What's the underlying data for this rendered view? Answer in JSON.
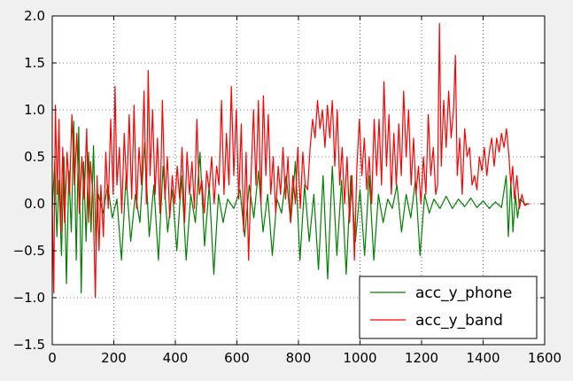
{
  "chart_data": {
    "type": "line",
    "title": "",
    "xlabel": "",
    "ylabel": "",
    "xlim": [
      0,
      1600
    ],
    "ylim": [
      -1.5,
      2.0
    ],
    "x_ticks": [
      0,
      200,
      400,
      600,
      800,
      1000,
      1200,
      1400,
      1600
    ],
    "y_ticks": [
      -1.5,
      -1.0,
      -0.5,
      0.0,
      0.5,
      1.0,
      1.5,
      2.0
    ],
    "x_tick_labels": [
      "0",
      "200",
      "400",
      "600",
      "800",
      "1000",
      "1200",
      "1400",
      "1600"
    ],
    "y_tick_labels": [
      "−1.5",
      "−1.0",
      "−0.5",
      "0.0",
      "0.5",
      "1.0",
      "1.5",
      "2.0"
    ],
    "grid": true,
    "legend_position": "bottom-right",
    "series": [
      {
        "name": "acc_y_phone",
        "color": "#008000",
        "points": [
          [
            0,
            -0.05
          ],
          [
            8,
            0.45
          ],
          [
            15,
            -0.35
          ],
          [
            22,
            0.25
          ],
          [
            30,
            -0.55
          ],
          [
            38,
            0.5
          ],
          [
            46,
            -0.85
          ],
          [
            54,
            0.35
          ],
          [
            62,
            -0.3
          ],
          [
            70,
            0.88
          ],
          [
            78,
            -0.6
          ],
          [
            86,
            0.82
          ],
          [
            94,
            -0.95
          ],
          [
            102,
            0.45
          ],
          [
            110,
            -0.4
          ],
          [
            118,
            0.55
          ],
          [
            126,
            -0.3
          ],
          [
            134,
            0.62
          ],
          [
            142,
            -0.45
          ],
          [
            150,
            0.1
          ],
          [
            165,
            -0.1
          ],
          [
            180,
            0.2
          ],
          [
            195,
            -0.15
          ],
          [
            210,
            0.05
          ],
          [
            225,
            -0.6
          ],
          [
            240,
            0.3
          ],
          [
            255,
            -0.4
          ],
          [
            270,
            0.1
          ],
          [
            285,
            -0.2
          ],
          [
            300,
            0.65
          ],
          [
            315,
            -0.35
          ],
          [
            330,
            0.2
          ],
          [
            345,
            -0.6
          ],
          [
            360,
            0.4
          ],
          [
            375,
            -0.3
          ],
          [
            390,
            0.15
          ],
          [
            405,
            -0.5
          ],
          [
            420,
            0.3
          ],
          [
            435,
            -0.6
          ],
          [
            450,
            0.1
          ],
          [
            465,
            -0.2
          ],
          [
            480,
            0.55
          ],
          [
            495,
            -0.45
          ],
          [
            510,
            0.2
          ],
          [
            525,
            -0.75
          ],
          [
            540,
            0.1
          ],
          [
            555,
            -0.2
          ],
          [
            570,
            0.05
          ],
          [
            590,
            -0.05
          ],
          [
            610,
            0.15
          ],
          [
            625,
            -0.35
          ],
          [
            640,
            0.2
          ],
          [
            655,
            -0.15
          ],
          [
            670,
            0.35
          ],
          [
            685,
            -0.3
          ],
          [
            700,
            0.1
          ],
          [
            715,
            -0.55
          ],
          [
            730,
            0.05
          ],
          [
            745,
            -0.1
          ],
          [
            760,
            0.3
          ],
          [
            775,
            -0.2
          ],
          [
            790,
            0.45
          ],
          [
            805,
            -0.6
          ],
          [
            820,
            0.2
          ],
          [
            835,
            -0.4
          ],
          [
            850,
            0.1
          ],
          [
            865,
            -0.7
          ],
          [
            880,
            0.3
          ],
          [
            895,
            -0.8
          ],
          [
            910,
            0.4
          ],
          [
            925,
            -0.55
          ],
          [
            940,
            0.25
          ],
          [
            955,
            -0.75
          ],
          [
            970,
            0.3
          ],
          [
            985,
            -0.4
          ],
          [
            1000,
            0.15
          ],
          [
            1015,
            -0.55
          ],
          [
            1030,
            0.3
          ],
          [
            1045,
            -0.6
          ],
          [
            1060,
            0.1
          ],
          [
            1075,
            -0.2
          ],
          [
            1090,
            0.05
          ],
          [
            1105,
            -0.05
          ],
          [
            1120,
            0.2
          ],
          [
            1135,
            -0.3
          ],
          [
            1150,
            0.1
          ],
          [
            1165,
            -0.15
          ],
          [
            1180,
            0.25
          ],
          [
            1195,
            -0.55
          ],
          [
            1210,
            0.1
          ],
          [
            1225,
            -0.1
          ],
          [
            1240,
            0.05
          ],
          [
            1260,
            -0.05
          ],
          [
            1280,
            0.08
          ],
          [
            1300,
            -0.05
          ],
          [
            1320,
            0.05
          ],
          [
            1340,
            -0.03
          ],
          [
            1360,
            0.06
          ],
          [
            1380,
            -0.04
          ],
          [
            1400,
            0.03
          ],
          [
            1420,
            -0.05
          ],
          [
            1440,
            0.02
          ],
          [
            1460,
            -0.04
          ],
          [
            1475,
            0.3
          ],
          [
            1482,
            -0.35
          ],
          [
            1490,
            0.25
          ],
          [
            1497,
            -0.3
          ],
          [
            1505,
            0.1
          ],
          [
            1512,
            -0.15
          ],
          [
            1520,
            0.05
          ],
          [
            1535,
            0.0
          ],
          [
            1550,
            0.0
          ]
        ]
      },
      {
        "name": "acc_y_band",
        "color": "#ff0000",
        "points": [
          [
            0,
            0.0
          ],
          [
            5,
            -0.95
          ],
          [
            10,
            1.05
          ],
          [
            16,
            0.1
          ],
          [
            22,
            0.9
          ],
          [
            28,
            -0.3
          ],
          [
            34,
            0.6
          ],
          [
            40,
            -0.2
          ],
          [
            48,
            0.55
          ],
          [
            56,
            0.1
          ],
          [
            64,
            0.95
          ],
          [
            72,
            0.2
          ],
          [
            80,
            0.75
          ],
          [
            88,
            -0.1
          ],
          [
            96,
            0.5
          ],
          [
            104,
            0.05
          ],
          [
            112,
            0.8
          ],
          [
            118,
            -0.2
          ],
          [
            124,
            0.45
          ],
          [
            132,
            0.1
          ],
          [
            140,
            -1.0
          ],
          [
            146,
            0.3
          ],
          [
            152,
            -0.5
          ],
          [
            158,
            0.2
          ],
          [
            166,
            -0.35
          ],
          [
            174,
            0.55
          ],
          [
            182,
            -0.05
          ],
          [
            190,
            0.9
          ],
          [
            198,
            0.1
          ],
          [
            204,
            1.25
          ],
          [
            210,
            0.2
          ],
          [
            218,
            0.6
          ],
          [
            226,
            -0.1
          ],
          [
            234,
            0.75
          ],
          [
            242,
            0.15
          ],
          [
            250,
            0.95
          ],
          [
            258,
            0.05
          ],
          [
            266,
            1.05
          ],
          [
            274,
            -0.05
          ],
          [
            282,
            0.6
          ],
          [
            290,
            0.2
          ],
          [
            298,
            1.2
          ],
          [
            306,
            0.0
          ],
          [
            312,
            1.42
          ],
          [
            318,
            0.3
          ],
          [
            326,
            1.0
          ],
          [
            334,
            0.1
          ],
          [
            342,
            0.7
          ],
          [
            350,
            -0.1
          ],
          [
            358,
            1.1
          ],
          [
            366,
            0.05
          ],
          [
            374,
            0.5
          ],
          [
            382,
            -0.15
          ],
          [
            390,
            0.3
          ],
          [
            398,
            0.0
          ],
          [
            406,
            0.4
          ],
          [
            414,
            0.05
          ],
          [
            422,
            0.6
          ],
          [
            430,
            -0.2
          ],
          [
            438,
            0.55
          ],
          [
            446,
            0.1
          ],
          [
            454,
            0.45
          ],
          [
            462,
            -0.05
          ],
          [
            470,
            0.9
          ],
          [
            478,
            0.1
          ],
          [
            486,
            0.25
          ],
          [
            494,
            -0.1
          ],
          [
            502,
            0.35
          ],
          [
            510,
            0.15
          ],
          [
            518,
            0.5
          ],
          [
            526,
            0.0
          ],
          [
            534,
            0.4
          ],
          [
            542,
            0.2
          ],
          [
            550,
            1.1
          ],
          [
            558,
            0.1
          ],
          [
            566,
            0.75
          ],
          [
            574,
            0.2
          ],
          [
            582,
            1.25
          ],
          [
            590,
            0.3
          ],
          [
            598,
            1.0
          ],
          [
            606,
            0.05
          ],
          [
            614,
            0.85
          ],
          [
            622,
            -0.3
          ],
          [
            630,
            0.55
          ],
          [
            638,
            -0.6
          ],
          [
            646,
            0.3
          ],
          [
            654,
            1.0
          ],
          [
            662,
            0.2
          ],
          [
            670,
            1.1
          ],
          [
            678,
            0.0
          ],
          [
            686,
            1.15
          ],
          [
            694,
            0.3
          ],
          [
            702,
            0.95
          ],
          [
            710,
            0.1
          ],
          [
            718,
            0.5
          ],
          [
            726,
            -0.1
          ],
          [
            734,
            0.4
          ],
          [
            742,
            0.1
          ],
          [
            750,
            0.6
          ],
          [
            758,
            0.05
          ],
          [
            766,
            0.5
          ],
          [
            774,
            -0.2
          ],
          [
            782,
            0.3
          ],
          [
            790,
            0.0
          ],
          [
            798,
            0.6
          ],
          [
            806,
            -0.05
          ],
          [
            814,
            0.55
          ],
          [
            822,
            0.2
          ],
          [
            830,
            0.15
          ],
          [
            838,
            0.6
          ],
          [
            846,
            0.9
          ],
          [
            854,
            0.7
          ],
          [
            862,
            1.1
          ],
          [
            870,
            0.8
          ],
          [
            878,
            1.0
          ],
          [
            886,
            0.6
          ],
          [
            894,
            1.05
          ],
          [
            902,
            0.7
          ],
          [
            910,
            1.1
          ],
          [
            918,
            0.4
          ],
          [
            926,
            1.0
          ],
          [
            934,
            0.2
          ],
          [
            942,
            0.6
          ],
          [
            950,
            0.0
          ],
          [
            958,
            0.5
          ],
          [
            966,
            -0.2
          ],
          [
            974,
            0.3
          ],
          [
            982,
            -0.6
          ],
          [
            990,
            0.4
          ],
          [
            998,
            0.9
          ],
          [
            1006,
            0.3
          ],
          [
            1014,
            0.7
          ],
          [
            1022,
            0.15
          ],
          [
            1030,
            0.5
          ],
          [
            1038,
            0.0
          ],
          [
            1046,
            0.9
          ],
          [
            1054,
            0.3
          ],
          [
            1062,
            0.9
          ],
          [
            1070,
            0.2
          ],
          [
            1078,
            1.3
          ],
          [
            1086,
            0.4
          ],
          [
            1094,
            0.95
          ],
          [
            1102,
            0.1
          ],
          [
            1110,
            0.75
          ],
          [
            1118,
            0.2
          ],
          [
            1126,
            0.85
          ],
          [
            1134,
            0.3
          ],
          [
            1142,
            1.2
          ],
          [
            1150,
            0.5
          ],
          [
            1158,
            1.0
          ],
          [
            1166,
            0.2
          ],
          [
            1174,
            0.7
          ],
          [
            1182,
            0.1
          ],
          [
            1190,
            0.4
          ],
          [
            1198,
            0.0
          ],
          [
            1206,
            0.5
          ],
          [
            1214,
            0.1
          ],
          [
            1222,
            0.95
          ],
          [
            1230,
            0.3
          ],
          [
            1238,
            0.6
          ],
          [
            1246,
            0.1
          ],
          [
            1252,
            0.2
          ],
          [
            1258,
            1.92
          ],
          [
            1264,
            0.4
          ],
          [
            1272,
            1.1
          ],
          [
            1280,
            0.6
          ],
          [
            1288,
            1.2
          ],
          [
            1296,
            0.7
          ],
          [
            1304,
            1.0
          ],
          [
            1310,
            1.58
          ],
          [
            1316,
            0.3
          ],
          [
            1324,
            0.7
          ],
          [
            1332,
            0.1
          ],
          [
            1340,
            0.8
          ],
          [
            1348,
            0.5
          ],
          [
            1356,
            0.6
          ],
          [
            1364,
            0.2
          ],
          [
            1372,
            0.3
          ],
          [
            1380,
            0.15
          ],
          [
            1388,
            0.5
          ],
          [
            1396,
            0.35
          ],
          [
            1404,
            0.6
          ],
          [
            1412,
            0.3
          ],
          [
            1420,
            0.55
          ],
          [
            1428,
            0.7
          ],
          [
            1436,
            0.4
          ],
          [
            1444,
            0.7
          ],
          [
            1452,
            0.55
          ],
          [
            1460,
            0.75
          ],
          [
            1468,
            0.6
          ],
          [
            1476,
            0.8
          ],
          [
            1484,
            0.5
          ],
          [
            1490,
            0.2
          ],
          [
            1496,
            0.4
          ],
          [
            1502,
            0.05
          ],
          [
            1510,
            0.3
          ],
          [
            1518,
            -0.05
          ],
          [
            1526,
            0.1
          ],
          [
            1535,
            -0.02
          ],
          [
            1545,
            0.0
          ],
          [
            1550,
            0.0
          ]
        ]
      }
    ]
  }
}
